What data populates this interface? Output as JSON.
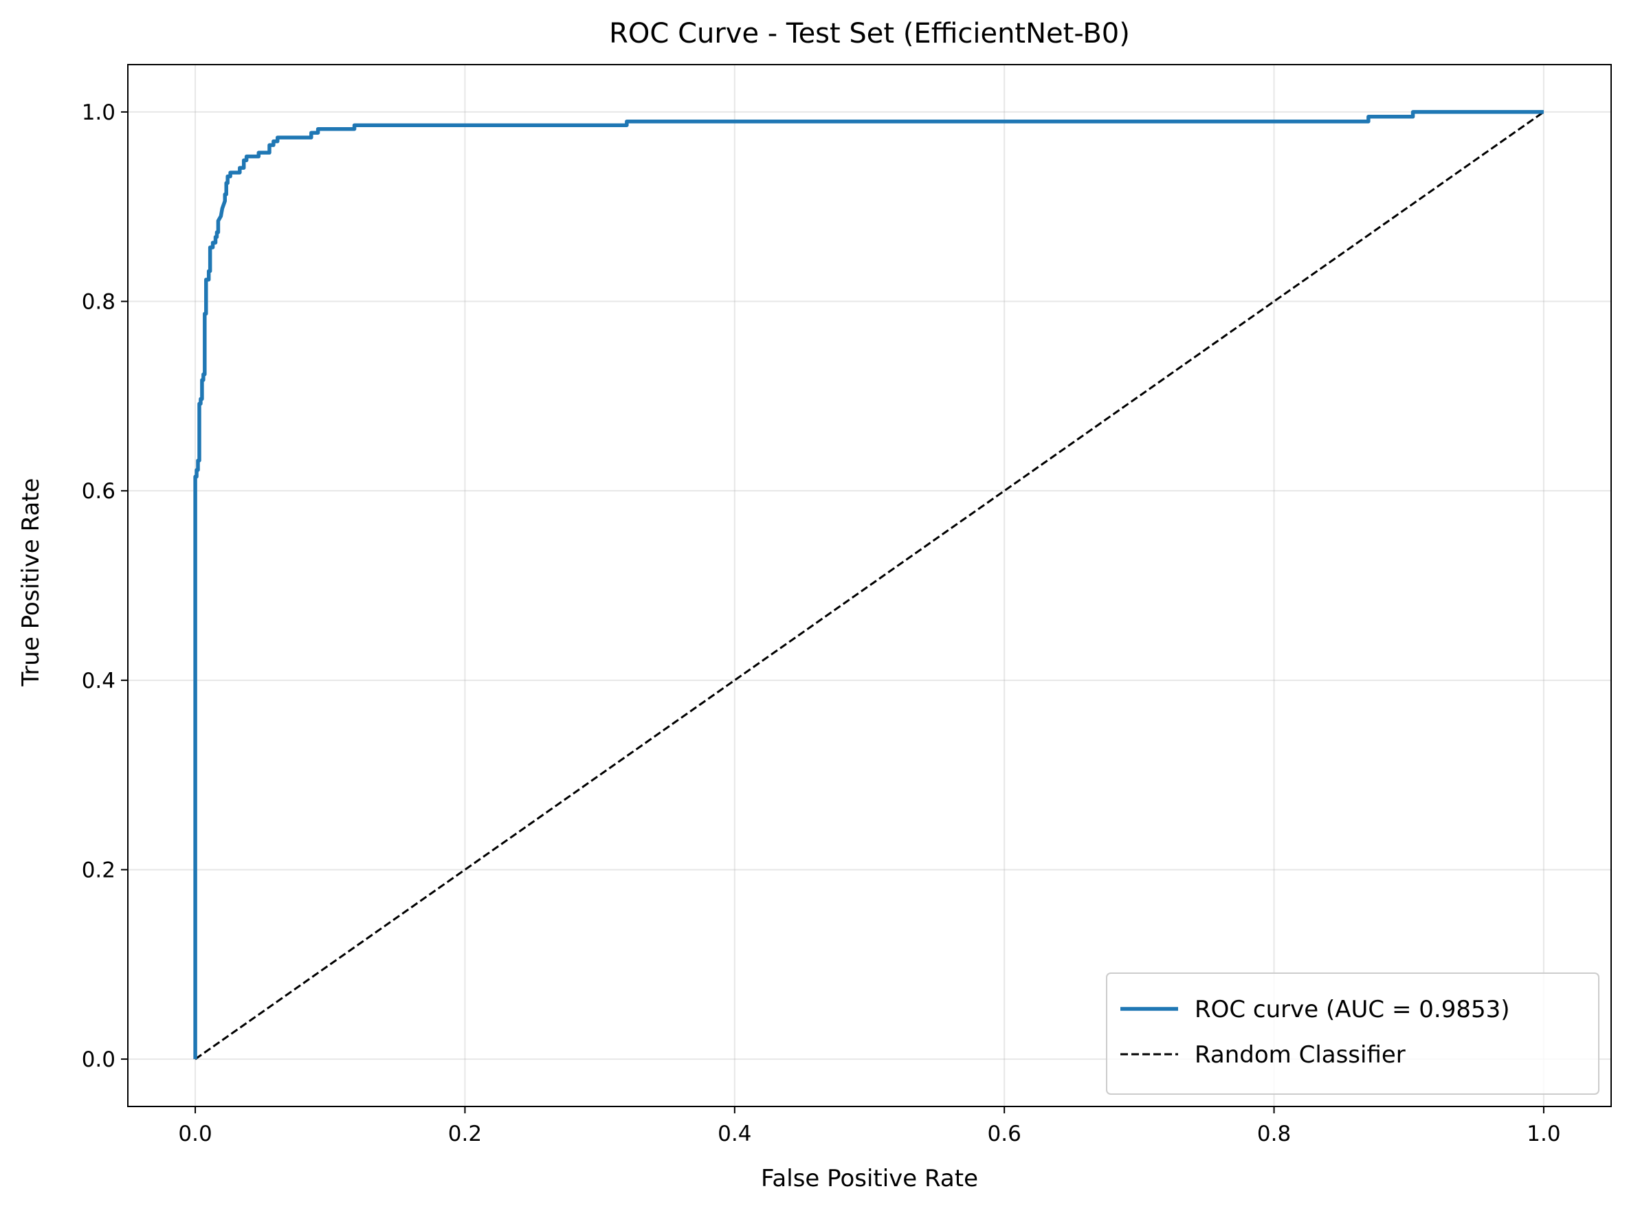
{
  "chart_data": {
    "type": "line",
    "title": "ROC Curve - Test Set (EfficientNet-B0)",
    "xlabel": "False Positive Rate",
    "ylabel": "True Positive Rate",
    "xlim": [
      -0.05,
      1.05
    ],
    "ylim": [
      -0.05,
      1.05
    ],
    "xticks": [
      0.0,
      0.2,
      0.4,
      0.6,
      0.8,
      1.0
    ],
    "yticks": [
      0.0,
      0.2,
      0.4,
      0.6,
      0.8,
      1.0
    ],
    "xtick_labels": [
      "0.0",
      "0.2",
      "0.4",
      "0.6",
      "0.8",
      "1.0"
    ],
    "ytick_labels": [
      "0.0",
      "0.2",
      "0.4",
      "0.6",
      "0.8",
      "1.0"
    ],
    "grid": true,
    "legend_position": "lower-right",
    "series": [
      {
        "name": "ROC curve (AUC = 0.9853)",
        "color": "#1f77b4",
        "style": "solid",
        "points": [
          [
            0.0,
            0.0
          ],
          [
            0.0,
            0.615
          ],
          [
            0.001,
            0.615
          ],
          [
            0.001,
            0.622
          ],
          [
            0.002,
            0.622
          ],
          [
            0.002,
            0.632
          ],
          [
            0.003,
            0.632
          ],
          [
            0.003,
            0.692
          ],
          [
            0.004,
            0.692
          ],
          [
            0.004,
            0.697
          ],
          [
            0.005,
            0.697
          ],
          [
            0.005,
            0.717
          ],
          [
            0.006,
            0.717
          ],
          [
            0.006,
            0.723
          ],
          [
            0.007,
            0.723
          ],
          [
            0.007,
            0.787
          ],
          [
            0.008,
            0.787
          ],
          [
            0.008,
            0.823
          ],
          [
            0.01,
            0.823
          ],
          [
            0.01,
            0.832
          ],
          [
            0.011,
            0.832
          ],
          [
            0.011,
            0.857
          ],
          [
            0.013,
            0.857
          ],
          [
            0.013,
            0.862
          ],
          [
            0.015,
            0.862
          ],
          [
            0.015,
            0.868
          ],
          [
            0.016,
            0.868
          ],
          [
            0.016,
            0.873
          ],
          [
            0.017,
            0.873
          ],
          [
            0.017,
            0.885
          ],
          [
            0.019,
            0.89
          ],
          [
            0.02,
            0.898
          ],
          [
            0.022,
            0.906
          ],
          [
            0.022,
            0.913
          ],
          [
            0.023,
            0.913
          ],
          [
            0.023,
            0.925
          ],
          [
            0.024,
            0.925
          ],
          [
            0.024,
            0.932
          ],
          [
            0.026,
            0.932
          ],
          [
            0.026,
            0.936
          ],
          [
            0.033,
            0.936
          ],
          [
            0.033,
            0.941
          ],
          [
            0.036,
            0.941
          ],
          [
            0.036,
            0.949
          ],
          [
            0.038,
            0.949
          ],
          [
            0.038,
            0.953
          ],
          [
            0.047,
            0.953
          ],
          [
            0.047,
            0.957
          ],
          [
            0.055,
            0.957
          ],
          [
            0.055,
            0.965
          ],
          [
            0.058,
            0.965
          ],
          [
            0.058,
            0.969
          ],
          [
            0.061,
            0.969
          ],
          [
            0.061,
            0.973
          ],
          [
            0.086,
            0.973
          ],
          [
            0.086,
            0.978
          ],
          [
            0.091,
            0.978
          ],
          [
            0.091,
            0.982
          ],
          [
            0.118,
            0.982
          ],
          [
            0.118,
            0.986
          ],
          [
            0.32,
            0.986
          ],
          [
            0.32,
            0.99
          ],
          [
            0.87,
            0.99
          ],
          [
            0.87,
            0.995
          ],
          [
            0.903,
            0.995
          ],
          [
            0.903,
            1.0
          ],
          [
            1.0,
            1.0
          ]
        ]
      },
      {
        "name": "Random Classifier",
        "color": "#000000",
        "style": "dashed",
        "points": [
          [
            0.0,
            0.0
          ],
          [
            1.0,
            1.0
          ]
        ]
      }
    ]
  }
}
